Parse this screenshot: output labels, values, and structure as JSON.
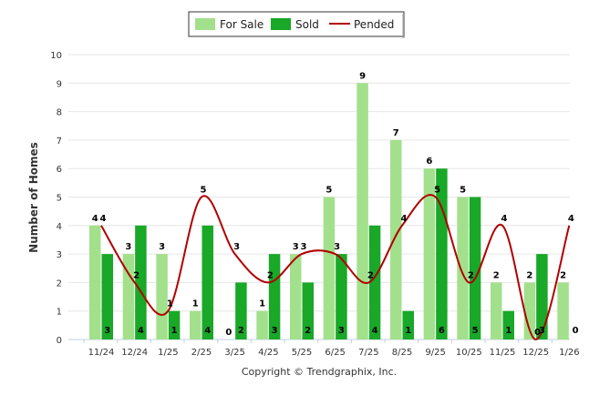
{
  "chart_data": {
    "type": "bar",
    "title": "",
    "xlabel": "",
    "ylabel": "Number of Homes",
    "ylim": [
      0,
      10
    ],
    "yticks": [
      0,
      1,
      2,
      3,
      4,
      5,
      6,
      7,
      8,
      9,
      10
    ],
    "categories": [
      "11/24",
      "12/24",
      "1/25",
      "2/25",
      "3/25",
      "4/25",
      "5/25",
      "6/25",
      "7/25",
      "8/25",
      "9/25",
      "10/25",
      "11/25",
      "12/25",
      "1/26"
    ],
    "series": [
      {
        "name": "For Sale",
        "type": "bar",
        "color": "#a3e08c",
        "values": [
          4,
          3,
          3,
          1,
          0,
          1,
          3,
          5,
          9,
          7,
          6,
          5,
          2,
          2,
          2
        ]
      },
      {
        "name": "Sold",
        "type": "bar",
        "color": "#19a828",
        "values": [
          3,
          4,
          1,
          4,
          2,
          3,
          2,
          3,
          4,
          1,
          6,
          5,
          1,
          3,
          0
        ]
      },
      {
        "name": "Pended",
        "type": "line",
        "color": "#b00000",
        "values": [
          4,
          2,
          1,
          5,
          3,
          2,
          3,
          3,
          2,
          4,
          5,
          2,
          4,
          0,
          4
        ]
      }
    ],
    "legend": "top-center",
    "grid": true
  },
  "footer": {
    "copyright": "Copyright © Trendgraphix, Inc."
  }
}
